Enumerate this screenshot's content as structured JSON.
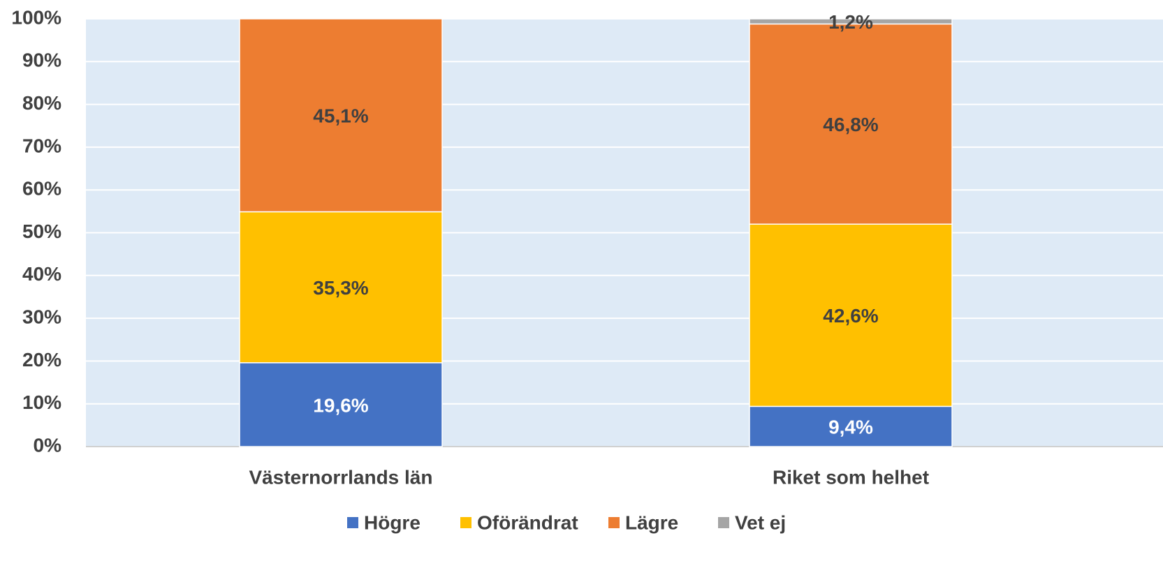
{
  "chart_data": {
    "type": "stacked-bar",
    "categories": [
      "Västernorrlands län",
      "Riket som helhet"
    ],
    "series": [
      {
        "name": "Högre",
        "color": "#4472c4",
        "values": [
          19.6,
          9.4
        ],
        "value_labels": [
          "19,6%",
          "9,4%"
        ]
      },
      {
        "name": "Oförändrat",
        "color": "#ffc000",
        "values": [
          35.3,
          42.6
        ],
        "value_labels": [
          "35,3%",
          "42,6%"
        ]
      },
      {
        "name": "Lägre",
        "color": "#ed7d31",
        "values": [
          45.1,
          46.8
        ],
        "value_labels": [
          "45,1%",
          "46,8%"
        ]
      },
      {
        "name": "Vet ej",
        "color": "#a5a5a5",
        "values": [
          null,
          1.2
        ],
        "value_labels": [
          null,
          "1,2%"
        ]
      }
    ],
    "ylim": [
      0,
      100
    ],
    "yticks": [
      {
        "value": 0,
        "label": "0%"
      },
      {
        "value": 10,
        "label": "10%"
      },
      {
        "value": 20,
        "label": "20%"
      },
      {
        "value": 30,
        "label": "30%"
      },
      {
        "value": 40,
        "label": "40%"
      },
      {
        "value": 50,
        "label": "50%"
      },
      {
        "value": 60,
        "label": "60%"
      },
      {
        "value": 70,
        "label": "70%"
      },
      {
        "value": 80,
        "label": "80%"
      },
      {
        "value": 90,
        "label": "90%"
      },
      {
        "value": 100,
        "label": "100%"
      }
    ],
    "grid": true,
    "legend": "bottom"
  }
}
